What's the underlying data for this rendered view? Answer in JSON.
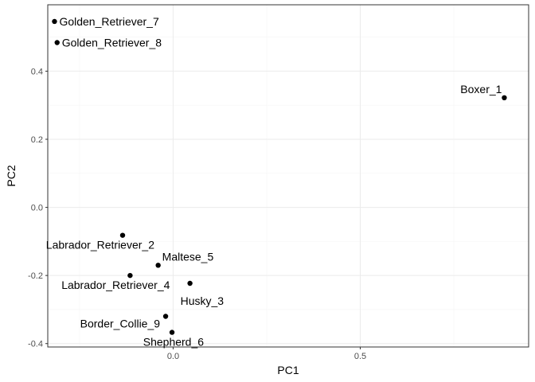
{
  "chart_data": {
    "type": "scatter",
    "title": "",
    "xlabel": "PC1",
    "ylabel": "PC2",
    "xlim": [
      -0.335,
      0.95
    ],
    "ylim": [
      -0.41,
      0.595
    ],
    "x_ticks": [
      0.0,
      0.5
    ],
    "x_tick_labels": [
      "0.0",
      "0.5"
    ],
    "y_ticks": [
      -0.4,
      -0.2,
      0.0,
      0.2,
      0.4
    ],
    "y_tick_labels": [
      "-0.4",
      "-0.2",
      "0.0",
      "0.2",
      "0.4"
    ],
    "grid": true,
    "legend": "none",
    "points": [
      {
        "label": "Boxer_1",
        "x": 0.885,
        "y": 0.322,
        "label_pos": "top-left"
      },
      {
        "label": "Labrador_Retriever_2",
        "x": -0.135,
        "y": -0.082,
        "label_pos": "bottom-left"
      },
      {
        "label": "Husky_3",
        "x": 0.045,
        "y": -0.223,
        "label_pos": "bottom-right"
      },
      {
        "label": "Labrador_Retriever_4",
        "x": -0.115,
        "y": -0.2,
        "label_pos": "bottom-right-left"
      },
      {
        "label": "Maltese_5",
        "x": -0.04,
        "y": -0.17,
        "label_pos": "top-right"
      },
      {
        "label": "Shepherd_6",
        "x": -0.003,
        "y": -0.367,
        "label_pos": "bottom-left"
      },
      {
        "label": "Golden_Retriever_7",
        "x": -0.317,
        "y": 0.546,
        "label_pos": "right"
      },
      {
        "label": "Golden_Retriever_8",
        "x": -0.31,
        "y": 0.484,
        "label_pos": "right"
      },
      {
        "label": "Border_Collie_9",
        "x": -0.02,
        "y": -0.32,
        "label_pos": "left"
      }
    ],
    "colors": {
      "point": "#000000",
      "panel_border": "#333333",
      "grid_major": "#ebebeb",
      "grid_minor": "#f5f5f5",
      "tick_text": "#4d4d4d"
    }
  }
}
